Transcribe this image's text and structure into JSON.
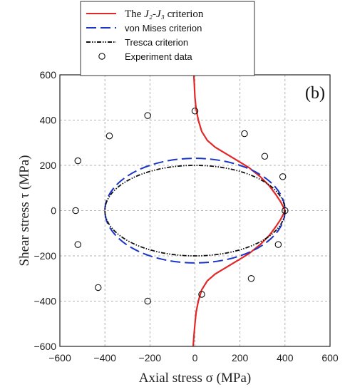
{
  "chart_data": {
    "type": "line",
    "title": "",
    "panel_label": "(b)",
    "xlabel": "Axial stress σ (MPa)",
    "ylabel": "Shear stress τ (MPa)",
    "xlim": [
      -600,
      600
    ],
    "ylim": [
      -600,
      600
    ],
    "xticks": [
      -600,
      -400,
      -200,
      0,
      200,
      400,
      600
    ],
    "yticks": [
      -600,
      -400,
      -200,
      0,
      200,
      400,
      600
    ],
    "grid": true,
    "legend_position": "top",
    "legend": [
      {
        "id": "j2j3",
        "prefix": "The ",
        "math": "J₂-J₃",
        "suffix": " criterion",
        "color": "#e32626",
        "style": "solid"
      },
      {
        "id": "vonmises",
        "label": "von Mises criterion",
        "color": "#1a35c8",
        "style": "dashed"
      },
      {
        "id": "tresca",
        "label": "Tresca criterion",
        "color": "#111111",
        "style": "dashdotdot"
      },
      {
        "id": "experiment",
        "label": "Experiment data",
        "color": "#111111",
        "style": "marker"
      }
    ],
    "series": [
      {
        "id": "j2j3",
        "color": "#e32626",
        "x": [
          -5,
          -3,
          0,
          5,
          15,
          30,
          55,
          90,
          140,
          190,
          240,
          290,
          330,
          360,
          380,
          393,
          400,
          393,
          380,
          360,
          330,
          290,
          240,
          190,
          140,
          90,
          55,
          30,
          15,
          5,
          0,
          -5,
          -8
        ],
        "y": [
          600,
          560,
          500,
          450,
          400,
          350,
          310,
          280,
          250,
          220,
          190,
          150,
          110,
          70,
          40,
          15,
          0,
          -15,
          -40,
          -70,
          -110,
          -150,
          -190,
          -220,
          -250,
          -280,
          -310,
          -350,
          -400,
          -450,
          -500,
          -560,
          -600
        ]
      },
      {
        "id": "vonmises",
        "color": "#1a35c8",
        "shape": "ellipse",
        "center": [
          0,
          0
        ],
        "semi_axis_x": 400,
        "semi_axis_y": 231
      },
      {
        "id": "tresca",
        "color": "#111111",
        "shape": "ellipse",
        "center": [
          0,
          0
        ],
        "semi_axis_x": 400,
        "semi_axis_y": 200
      },
      {
        "id": "experiment",
        "color": "#111111",
        "points": [
          [
            0,
            440
          ],
          [
            220,
            340
          ],
          [
            310,
            240
          ],
          [
            390,
            150
          ],
          [
            400,
            0
          ],
          [
            370,
            -150
          ],
          [
            250,
            -300
          ],
          [
            30,
            -370
          ],
          [
            -210,
            420
          ],
          [
            -380,
            330
          ],
          [
            -520,
            220
          ],
          [
            -530,
            0
          ],
          [
            -520,
            -150
          ],
          [
            -430,
            -340
          ],
          [
            -210,
            -400
          ]
        ]
      }
    ]
  }
}
